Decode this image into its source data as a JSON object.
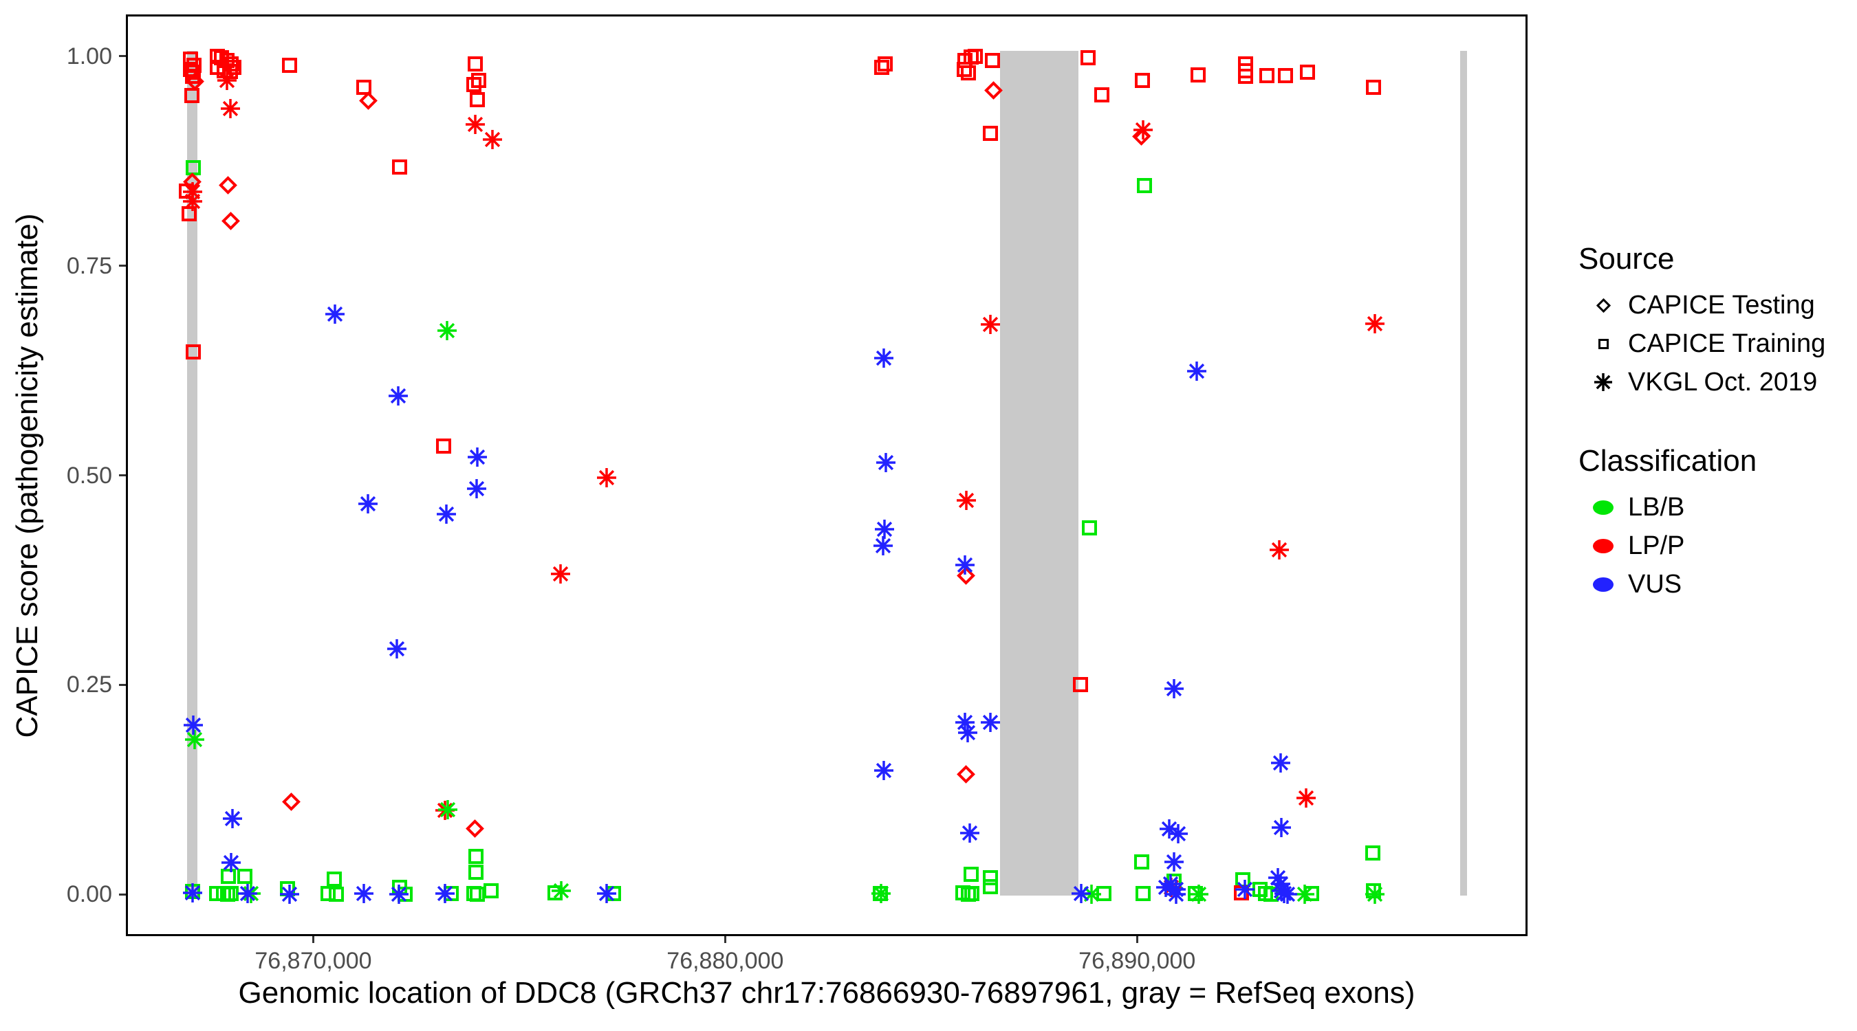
{
  "chart_data": {
    "type": "scatter",
    "title": "",
    "xlabel": "Genomic location of DDC8 (GRCh37 chr17:76866930-76897961, gray = RefSeq exons)",
    "ylabel": "CAPICE score (pathogenicity estimate)",
    "x_axis": {
      "tick_values": [
        76870000,
        76880000,
        76890000
      ],
      "tick_labels": [
        "76,870,000",
        "76,880,000",
        "76,890,000"
      ],
      "range": [
        76865450,
        76899480
      ]
    },
    "y_axis": {
      "tick_values": [
        0.0,
        0.25,
        0.5,
        0.75,
        1.0
      ],
      "tick_labels": [
        "0.00",
        "0.25",
        "0.50",
        "0.75",
        "1.00"
      ],
      "range": [
        -0.05,
        1.05
      ]
    },
    "grid": "off",
    "legend_position": "right",
    "exon_color": "#c9c9c9",
    "refseq_exons": [
      [
        76866940,
        76867190
      ],
      [
        76886670,
        76888575
      ],
      [
        76897840,
        76898010
      ]
    ],
    "series": [
      {
        "source": "CAPICE Training",
        "shape": "square",
        "classification": "LB/B",
        "color_key": "lbb",
        "points": [
          [
            76867091,
            0.867
          ],
          [
            76867943,
            0.021
          ],
          [
            76868344,
            0.021
          ],
          [
            76867659,
            0.001
          ],
          [
            76867826,
            0.001
          ],
          [
            76867926,
            0.0
          ],
          [
            76868010,
            0.001
          ],
          [
            76869381,
            0.007
          ],
          [
            76870502,
            0.018
          ],
          [
            76870351,
            0.001
          ],
          [
            76870552,
            0.0
          ],
          [
            76872090,
            0.008
          ],
          [
            76872224,
            0.0
          ],
          [
            76873344,
            0.001
          ],
          [
            76873946,
            0.045
          ],
          [
            76873946,
            0.026
          ],
          [
            76873896,
            0.001
          ],
          [
            76873979,
            0.0
          ],
          [
            76874314,
            0.004
          ],
          [
            76875869,
            0.002
          ],
          [
            76877290,
            0.001
          ],
          [
            76883761,
            0.001
          ],
          [
            76885968,
            0.024
          ],
          [
            76886436,
            0.02
          ],
          [
            76886436,
            0.009
          ],
          [
            76885767,
            0.002
          ],
          [
            76885901,
            0.0
          ],
          [
            76885984,
            0.001
          ],
          [
            76888843,
            0.437
          ],
          [
            76889195,
            0.001
          ],
          [
            76890181,
            0.846
          ],
          [
            76890114,
            0.039
          ],
          [
            76890148,
            0.001
          ],
          [
            76890900,
            0.016
          ],
          [
            76891418,
            0.001
          ],
          [
            76892572,
            0.017
          ],
          [
            76892990,
            0.006
          ],
          [
            76893124,
            0.001
          ],
          [
            76893258,
            0.0
          ],
          [
            76894244,
            0.001
          ],
          [
            76895715,
            0.049
          ],
          [
            76895748,
            0.004
          ],
          [
            76867074,
            0.003
          ]
        ]
      },
      {
        "source": "CAPICE Training",
        "shape": "square",
        "classification": "LP/P",
        "color_key": "lpp",
        "points": [
          [
            76867024,
            0.997
          ],
          [
            76867108,
            0.989
          ],
          [
            76867024,
            0.984
          ],
          [
            76867091,
            0.981
          ],
          [
            76867074,
            0.976
          ],
          [
            76867058,
            0.953
          ],
          [
            76866924,
            0.839
          ],
          [
            76866990,
            0.812
          ],
          [
            76867091,
            0.647
          ],
          [
            76867676,
            1.0
          ],
          [
            76867776,
            0.998
          ],
          [
            76867910,
            0.995
          ],
          [
            76868010,
            0.991
          ],
          [
            76867676,
            0.987
          ],
          [
            76868077,
            0.987
          ],
          [
            76867843,
            0.983
          ],
          [
            76867994,
            0.982
          ],
          [
            76869431,
            0.989
          ],
          [
            76871220,
            0.963
          ],
          [
            76872090,
            0.868
          ],
          [
            76873160,
            0.535
          ],
          [
            76873929,
            0.991
          ],
          [
            76874013,
            0.971
          ],
          [
            76873896,
            0.966
          ],
          [
            76873979,
            0.948
          ],
          [
            76883794,
            0.987
          ],
          [
            76883878,
            0.991
          ],
          [
            76885817,
            0.995
          ],
          [
            76885968,
            0.999
          ],
          [
            76886068,
            1.0
          ],
          [
            76885801,
            0.984
          ],
          [
            76885901,
            0.98
          ],
          [
            76886486,
            0.995
          ],
          [
            76886436,
            0.908
          ],
          [
            76888810,
            0.998
          ],
          [
            76889144,
            0.954
          ],
          [
            76888626,
            0.25
          ],
          [
            76890131,
            0.971
          ],
          [
            76891485,
            0.978
          ],
          [
            76892639,
            0.991
          ],
          [
            76892639,
            0.983
          ],
          [
            76892639,
            0.976
          ],
          [
            76893157,
            0.977
          ],
          [
            76893608,
            0.977
          ],
          [
            76894144,
            0.981
          ],
          [
            76895732,
            0.963
          ],
          [
            76892539,
            0.002
          ]
        ]
      },
      {
        "source": "CAPICE Testing",
        "shape": "diamond",
        "classification": "LP/P",
        "color_key": "lpp",
        "points": [
          [
            76867142,
            0.97
          ],
          [
            76867074,
            0.85
          ],
          [
            76867943,
            0.846
          ],
          [
            76868011,
            0.803
          ],
          [
            76871338,
            0.947
          ],
          [
            76886520,
            0.959
          ],
          [
            76890114,
            0.904
          ],
          [
            76869482,
            0.11
          ],
          [
            76873929,
            0.078
          ],
          [
            76885851,
            0.143
          ],
          [
            76885851,
            0.38
          ]
        ]
      },
      {
        "source": "VKGL Oct. 2019",
        "shape": "asterisk",
        "classification": "LP/P",
        "color_key": "lpp",
        "points": [
          [
            76867074,
            0.838
          ],
          [
            76867074,
            0.827
          ],
          [
            76867910,
            0.971
          ],
          [
            76867994,
            0.938
          ],
          [
            76873929,
            0.919
          ],
          [
            76874347,
            0.901
          ],
          [
            76876002,
            0.382
          ],
          [
            76877123,
            0.497
          ],
          [
            76885851,
            0.47
          ],
          [
            76886436,
            0.68
          ],
          [
            76890148,
            0.912
          ],
          [
            76895765,
            0.681
          ],
          [
            76893458,
            0.411
          ],
          [
            76894111,
            0.115
          ],
          [
            76873194,
            0.1
          ],
          [
            76890833,
            0.008
          ]
        ]
      },
      {
        "source": "VKGL Oct. 2019",
        "shape": "asterisk",
        "classification": "LB/B",
        "color_key": "lbb",
        "points": [
          [
            76867125,
            0.185
          ],
          [
            76873244,
            0.673
          ],
          [
            76873260,
            0.101
          ],
          [
            76868494,
            0.001
          ],
          [
            76876019,
            0.004
          ],
          [
            76883790,
            0.001
          ],
          [
            76888894,
            0.0
          ],
          [
            76891502,
            0.0
          ],
          [
            76894077,
            0.0
          ],
          [
            76895765,
            0.0
          ]
        ]
      },
      {
        "source": "VKGL Oct. 2019",
        "shape": "asterisk",
        "classification": "VUS",
        "color_key": "vus",
        "points": [
          [
            76870518,
            0.692
          ],
          [
            76872056,
            0.595
          ],
          [
            76871321,
            0.466
          ],
          [
            76873227,
            0.454
          ],
          [
            76872023,
            0.293
          ],
          [
            76873979,
            0.522
          ],
          [
            76873963,
            0.484
          ],
          [
            76883844,
            0.64
          ],
          [
            76883894,
            0.515
          ],
          [
            76883861,
            0.436
          ],
          [
            76883827,
            0.416
          ],
          [
            76883844,
            0.148
          ],
          [
            76885817,
            0.393
          ],
          [
            76885817,
            0.205
          ],
          [
            76885884,
            0.193
          ],
          [
            76886436,
            0.205
          ],
          [
            76885934,
            0.073
          ],
          [
            76891452,
            0.624
          ],
          [
            76890900,
            0.245
          ],
          [
            76893492,
            0.157
          ],
          [
            76893508,
            0.08
          ],
          [
            76890783,
            0.078
          ],
          [
            76891000,
            0.072
          ],
          [
            76890900,
            0.039
          ],
          [
            76868044,
            0.09
          ],
          [
            76868010,
            0.038
          ],
          [
            76867091,
            0.202
          ],
          [
            76867074,
            0.002
          ],
          [
            76868411,
            0.001
          ],
          [
            76869431,
            0.0
          ],
          [
            76871220,
            0.001
          ],
          [
            76872073,
            0.0
          ],
          [
            76873194,
            0.001
          ],
          [
            76877123,
            0.001
          ],
          [
            76888643,
            0.001
          ],
          [
            76890817,
            0.012
          ],
          [
            76890950,
            0.006
          ],
          [
            76890700,
            0.008
          ],
          [
            76890950,
            0.0
          ],
          [
            76892622,
            0.006
          ],
          [
            76893425,
            0.02
          ],
          [
            76893492,
            0.012
          ],
          [
            76893508,
            0.004
          ],
          [
            76893575,
            0.001
          ],
          [
            76893659,
            0.0
          ]
        ]
      }
    ],
    "colors": {
      "lpp": "#ff0000",
      "lbb": "#00e606",
      "vus": "#2222ff"
    }
  },
  "legend": {
    "source": {
      "title": "Source",
      "items": [
        {
          "shape": "diamond",
          "label": "CAPICE Testing"
        },
        {
          "shape": "square",
          "label": "CAPICE Training"
        },
        {
          "shape": "asterisk",
          "label": "VKGL Oct. 2019"
        }
      ]
    },
    "classification": {
      "title": "Classification",
      "items": [
        {
          "color_key": "lbb",
          "label": "LB/B"
        },
        {
          "color_key": "lpp",
          "label": "LP/P"
        },
        {
          "color_key": "vus",
          "label": "VUS"
        }
      ]
    }
  }
}
